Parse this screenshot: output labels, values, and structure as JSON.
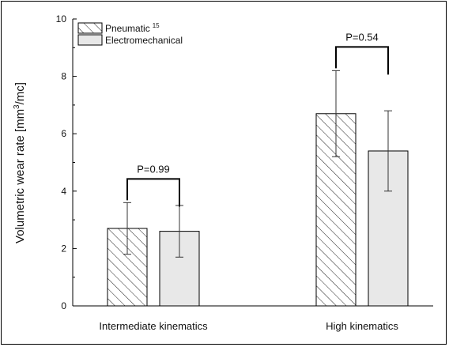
{
  "chart_data": {
    "type": "bar",
    "title": "",
    "xlabel": "",
    "ylabel": "Volumetric wear rate [mm³/mc]",
    "ylabel_parts": {
      "pre": "Volumetric wear rate [mm",
      "sup": "3",
      "post": "/mc]"
    },
    "ylim": [
      0,
      10
    ],
    "yticks": [
      "0",
      "2",
      "4",
      "6",
      "8",
      "10"
    ],
    "categories": [
      "Intermediate kinematics",
      "High kinematics"
    ],
    "series": [
      {
        "name": "Pneumatic",
        "name_sup": "15",
        "pattern": "hatch",
        "values": [
          2.7,
          6.7
        ],
        "error": [
          [
            1.8,
            3.6
          ],
          [
            5.2,
            8.2
          ]
        ]
      },
      {
        "name": "Electromechanical",
        "pattern": "solid",
        "fill": "#e8e8e8",
        "values": [
          2.6,
          5.4
        ],
        "error": [
          [
            1.7,
            3.5
          ],
          [
            4.0,
            6.8
          ]
        ]
      }
    ],
    "annotations": [
      {
        "category": 0,
        "label": "P=0.99"
      },
      {
        "category": 1,
        "label": "P=0.54"
      }
    ],
    "legend_position": "top-left",
    "grid": false
  }
}
